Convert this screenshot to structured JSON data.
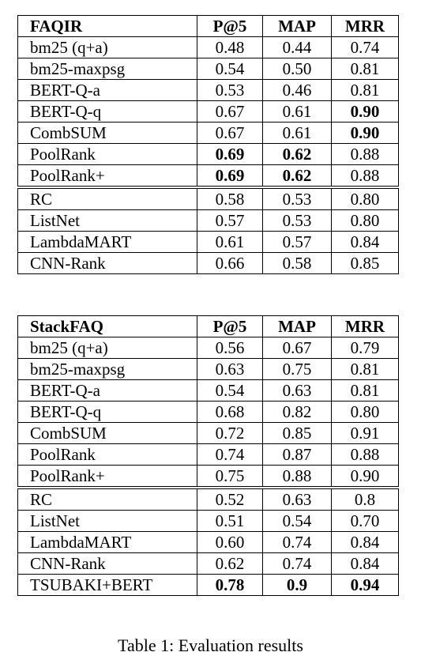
{
  "tables": [
    {
      "header": [
        "FAQIR",
        "P@5",
        "MAP",
        "MRR"
      ],
      "rows": [
        {
          "cells": [
            "bm25 (q+a)",
            "0.48",
            "0.44",
            "0.74"
          ],
          "bold": [
            false,
            false,
            false,
            false
          ]
        },
        {
          "cells": [
            "bm25-maxpsg",
            "0.54",
            "0.50",
            "0.81"
          ],
          "bold": [
            false,
            false,
            false,
            false
          ]
        },
        {
          "cells": [
            "BERT-Q-a",
            "0.53",
            "0.46",
            "0.81"
          ],
          "bold": [
            false,
            false,
            false,
            false
          ]
        },
        {
          "cells": [
            "BERT-Q-q",
            "0.67",
            "0.61",
            "0.90"
          ],
          "bold": [
            false,
            false,
            false,
            true
          ]
        },
        {
          "cells": [
            "CombSUM",
            "0.67",
            "0.61",
            "0.90"
          ],
          "bold": [
            false,
            false,
            false,
            true
          ]
        },
        {
          "cells": [
            "PoolRank",
            "0.69",
            "0.62",
            "0.88"
          ],
          "bold": [
            false,
            true,
            true,
            false
          ]
        },
        {
          "cells": [
            "PoolRank+",
            "0.69",
            "0.62",
            "0.88"
          ],
          "bold": [
            false,
            true,
            true,
            false
          ]
        },
        {
          "cells": [
            "RC",
            "0.58",
            "0.53",
            "0.80"
          ],
          "bold": [
            false,
            false,
            false,
            false
          ],
          "group_start": true
        },
        {
          "cells": [
            "ListNet",
            "0.57",
            "0.53",
            "0.80"
          ],
          "bold": [
            false,
            false,
            false,
            false
          ]
        },
        {
          "cells": [
            "LambdaMART",
            "0.61",
            "0.57",
            "0.84"
          ],
          "bold": [
            false,
            false,
            false,
            false
          ]
        },
        {
          "cells": [
            "CNN-Rank",
            "0.66",
            "0.58",
            "0.85"
          ],
          "bold": [
            false,
            false,
            false,
            false
          ]
        }
      ]
    },
    {
      "header": [
        "StackFAQ",
        "P@5",
        "MAP",
        "MRR"
      ],
      "rows": [
        {
          "cells": [
            "bm25 (q+a)",
            "0.56",
            "0.67",
            "0.79"
          ],
          "bold": [
            false,
            false,
            false,
            false
          ]
        },
        {
          "cells": [
            "bm25-maxpsg",
            "0.63",
            "0.75",
            "0.81"
          ],
          "bold": [
            false,
            false,
            false,
            false
          ]
        },
        {
          "cells": [
            "BERT-Q-a",
            "0.54",
            "0.63",
            "0.81"
          ],
          "bold": [
            false,
            false,
            false,
            false
          ]
        },
        {
          "cells": [
            "BERT-Q-q",
            "0.68",
            "0.82",
            "0.80"
          ],
          "bold": [
            false,
            false,
            false,
            false
          ]
        },
        {
          "cells": [
            "CombSUM",
            "0.72",
            "0.85",
            "0.91"
          ],
          "bold": [
            false,
            false,
            false,
            false
          ]
        },
        {
          "cells": [
            "PoolRank",
            "0.74",
            "0.87",
            "0.88"
          ],
          "bold": [
            false,
            false,
            false,
            false
          ]
        },
        {
          "cells": [
            "PoolRank+",
            "0.75",
            "0.88",
            "0.90"
          ],
          "bold": [
            false,
            false,
            false,
            false
          ]
        },
        {
          "cells": [
            "RC",
            "0.52",
            "0.63",
            "0.8"
          ],
          "bold": [
            false,
            false,
            false,
            false
          ],
          "group_start": true
        },
        {
          "cells": [
            "ListNet",
            "0.51",
            "0.54",
            "0.70"
          ],
          "bold": [
            false,
            false,
            false,
            false
          ]
        },
        {
          "cells": [
            "LambdaMART",
            "0.60",
            "0.74",
            "0.84"
          ],
          "bold": [
            false,
            false,
            false,
            false
          ]
        },
        {
          "cells": [
            "CNN-Rank",
            "0.62",
            "0.74",
            "0.84"
          ],
          "bold": [
            false,
            false,
            false,
            false
          ]
        },
        {
          "cells": [
            "TSUBAKI+BERT",
            "0.78",
            "0.9",
            "0.94"
          ],
          "bold": [
            false,
            true,
            true,
            true
          ]
        }
      ]
    }
  ],
  "caption": "Table 1: Evaluation results"
}
